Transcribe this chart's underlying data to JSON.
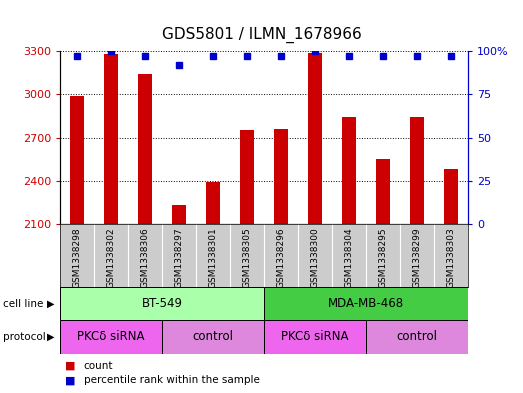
{
  "title": "GDS5801 / ILMN_1678966",
  "samples": [
    "GSM1338298",
    "GSM1338302",
    "GSM1338306",
    "GSM1338297",
    "GSM1338301",
    "GSM1338305",
    "GSM1338296",
    "GSM1338300",
    "GSM1338304",
    "GSM1338295",
    "GSM1338299",
    "GSM1338303"
  ],
  "counts": [
    2990,
    3280,
    3140,
    2230,
    2390,
    2750,
    2760,
    3285,
    2840,
    2550,
    2840,
    2480
  ],
  "percentiles": [
    97,
    100,
    97,
    92,
    97,
    97,
    97,
    100,
    97,
    97,
    97,
    97
  ],
  "ylim": [
    2100,
    3300
  ],
  "yticks": [
    2100,
    2400,
    2700,
    3000,
    3300
  ],
  "right_yticks": [
    0,
    25,
    50,
    75,
    100
  ],
  "bar_color": "#cc0000",
  "dot_color": "#0000cc",
  "cell_line_groups": [
    {
      "label": "BT-549",
      "start": 0,
      "end": 6,
      "color": "#aaffaa"
    },
    {
      "label": "MDA-MB-468",
      "start": 6,
      "end": 12,
      "color": "#44cc44"
    }
  ],
  "protocol_groups": [
    {
      "label": "PKCδ siRNA",
      "start": 0,
      "end": 3,
      "color": "#ee66ee"
    },
    {
      "label": "control",
      "start": 3,
      "end": 6,
      "color": "#dd88dd"
    },
    {
      "label": "PKCδ siRNA",
      "start": 6,
      "end": 9,
      "color": "#ee66ee"
    },
    {
      "label": "control",
      "start": 9,
      "end": 12,
      "color": "#dd88dd"
    }
  ],
  "legend_count_color": "#cc0000",
  "legend_percentile_color": "#0000cc",
  "bg_color": "#ffffff",
  "label_bg": "#cccccc",
  "title_fontsize": 11,
  "tick_label_fontsize": 6.5,
  "bar_width": 0.4
}
